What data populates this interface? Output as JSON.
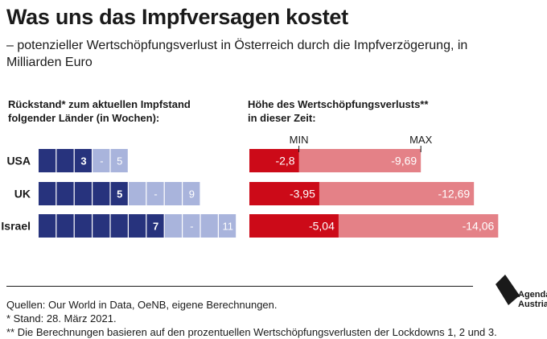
{
  "title": "Was uns das Impfversagen kostet",
  "subtitle": "– potenzieller Wertschöpfungsverlust in Österreich durch die Impfverzögerung, in Milliarden Euro",
  "left_header": [
    "Rückstand* zum aktuellen Impfstand",
    "folgender Länder (in Wochen):"
  ],
  "right_header": [
    "Höhe des Wertschöpfungsverlusts**",
    "in dieser Zeit:"
  ],
  "min_label": "MIN",
  "max_label": "MAX",
  "colors": {
    "navy": "#27337d",
    "light_blue": "#a9b4dc",
    "red": "#cc0a18",
    "pink": "#e48187"
  },
  "chart_data": {
    "type": "bar",
    "categories": [
      "USA",
      "UK",
      "Israel"
    ],
    "left_panel": {
      "unit": "Wochen",
      "min_weeks": [
        3,
        5,
        7
      ],
      "max_weeks": [
        5,
        9,
        11
      ],
      "min_labels": [
        "3",
        "5",
        "7"
      ],
      "sep_labels": [
        "-",
        "-",
        "-"
      ],
      "max_labels": [
        "5",
        "9",
        "11"
      ]
    },
    "right_panel": {
      "unit": "Milliarden Euro",
      "min_values": [
        -2.8,
        -3.95,
        -5.04
      ],
      "max_values": [
        -9.69,
        -12.69,
        -14.06
      ],
      "min_labels": [
        "-2,8",
        "-3,95",
        "-5,04"
      ],
      "max_labels": [
        "-9,69",
        "-12,69",
        "-14,06"
      ]
    }
  },
  "footer": {
    "source": "Quellen: Our World in Data, OeNB, eigene Berechnungen.",
    "stand": "* Stand: 28. März 2021.",
    "note": "** Die Berechnungen basieren auf den prozentuellen Wertschöpfungsverlusten der Lockdowns 1, 2 und 3."
  },
  "logo": {
    "line1": "Agenda",
    "line2": "Austria"
  }
}
